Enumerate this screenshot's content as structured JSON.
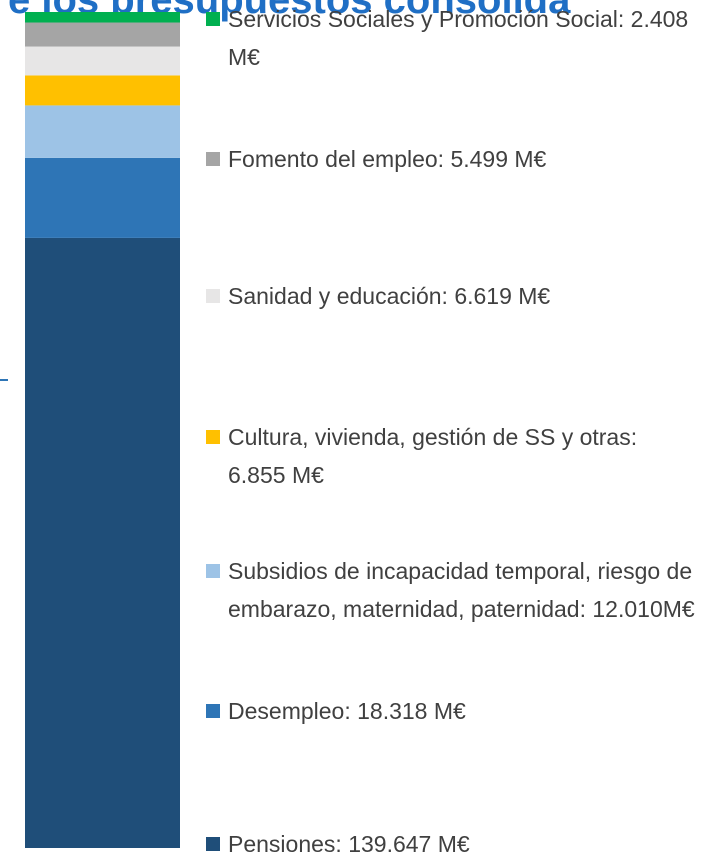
{
  "chart_data": {
    "type": "bar",
    "stacked": true,
    "title": "e los presupuestos consolida",
    "series": [
      {
        "name": "Servicios Sociales y Promoción Social: 2.408 M€",
        "color": "#00b050",
        "values": [
          2408
        ]
      },
      {
        "name": "Fomento del empleo: 5.499 M€",
        "color": "#a5a5a5",
        "values": [
          5499
        ]
      },
      {
        "name": "Sanidad y educación: 6.619 M€",
        "color": "#e7e6e6",
        "values": [
          6619
        ]
      },
      {
        "name": "Cultura, vivienda, gestión de SS y otras: 6.855 M€",
        "color": "#ffc000",
        "values": [
          6855
        ]
      },
      {
        "name": "Subsidios de incapacidad temporal, riesgo de embarazo, maternidad, paternidad: 12.010M€",
        "color": "#9dc3e6",
        "values": [
          12010
        ]
      },
      {
        "name": "Desempleo: 18.318 M€",
        "color": "#2e75b6",
        "values": [
          18318
        ]
      },
      {
        "name": "Pensiones: 139.647 M€",
        "color": "#1f4e79",
        "values": [
          139647
        ]
      }
    ]
  }
}
